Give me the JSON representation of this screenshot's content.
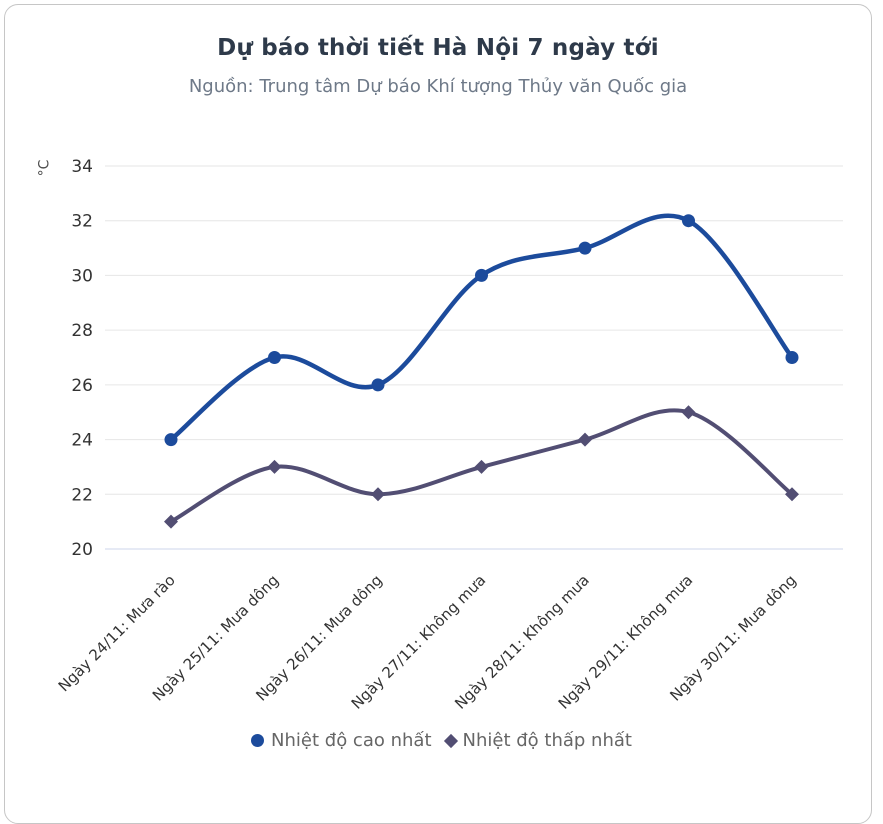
{
  "card": {
    "title": "Dự báo thời tiết Hà Nội 7 ngày tới",
    "subtitle": "Nguồn: Trung tâm Dự báo Khí tượng Thủy văn Quốc gia"
  },
  "chart_data": {
    "type": "line",
    "title": "Dự báo thời tiết Hà Nội 7 ngày tới",
    "subtitle": "Nguồn: Trung tâm Dự báo Khí tượng Thủy văn Quốc gia",
    "ylabel": "°C",
    "xlabel": "",
    "categories": [
      "Ngày 24/11: Mưa rào",
      "Ngày 25/11: Mưa dông",
      "Ngày 26/11: Mưa dông",
      "Ngày 27/11: Không mưa",
      "Ngày 28/11: Không mưa",
      "Ngày 29/11: Không mưa",
      "Ngày 30/11: Mưa dông"
    ],
    "series": [
      {
        "name": "Nhiệt độ cao nhất",
        "marker": "circle",
        "color": "#1c4b9c",
        "values": [
          24,
          27,
          26,
          30,
          31,
          32,
          27
        ]
      },
      {
        "name": "Nhiệt độ thấp nhất",
        "marker": "diamond",
        "color": "#524e73",
        "values": [
          21,
          23,
          22,
          23,
          24,
          25,
          22
        ]
      }
    ],
    "ylim": [
      20,
      34
    ],
    "ytick_step": 2,
    "grid": true,
    "legend_position": "bottom",
    "line_shape": "spline",
    "colors": {
      "grid": "#e6e6e6",
      "axis_line": "#ccd6eb",
      "tick_label": "#333333",
      "x_label": "#333333",
      "title": "#2e3a4a",
      "subtitle": "#6e7988",
      "legend_text": "#666666",
      "card_border": "#c6c6c6"
    }
  }
}
